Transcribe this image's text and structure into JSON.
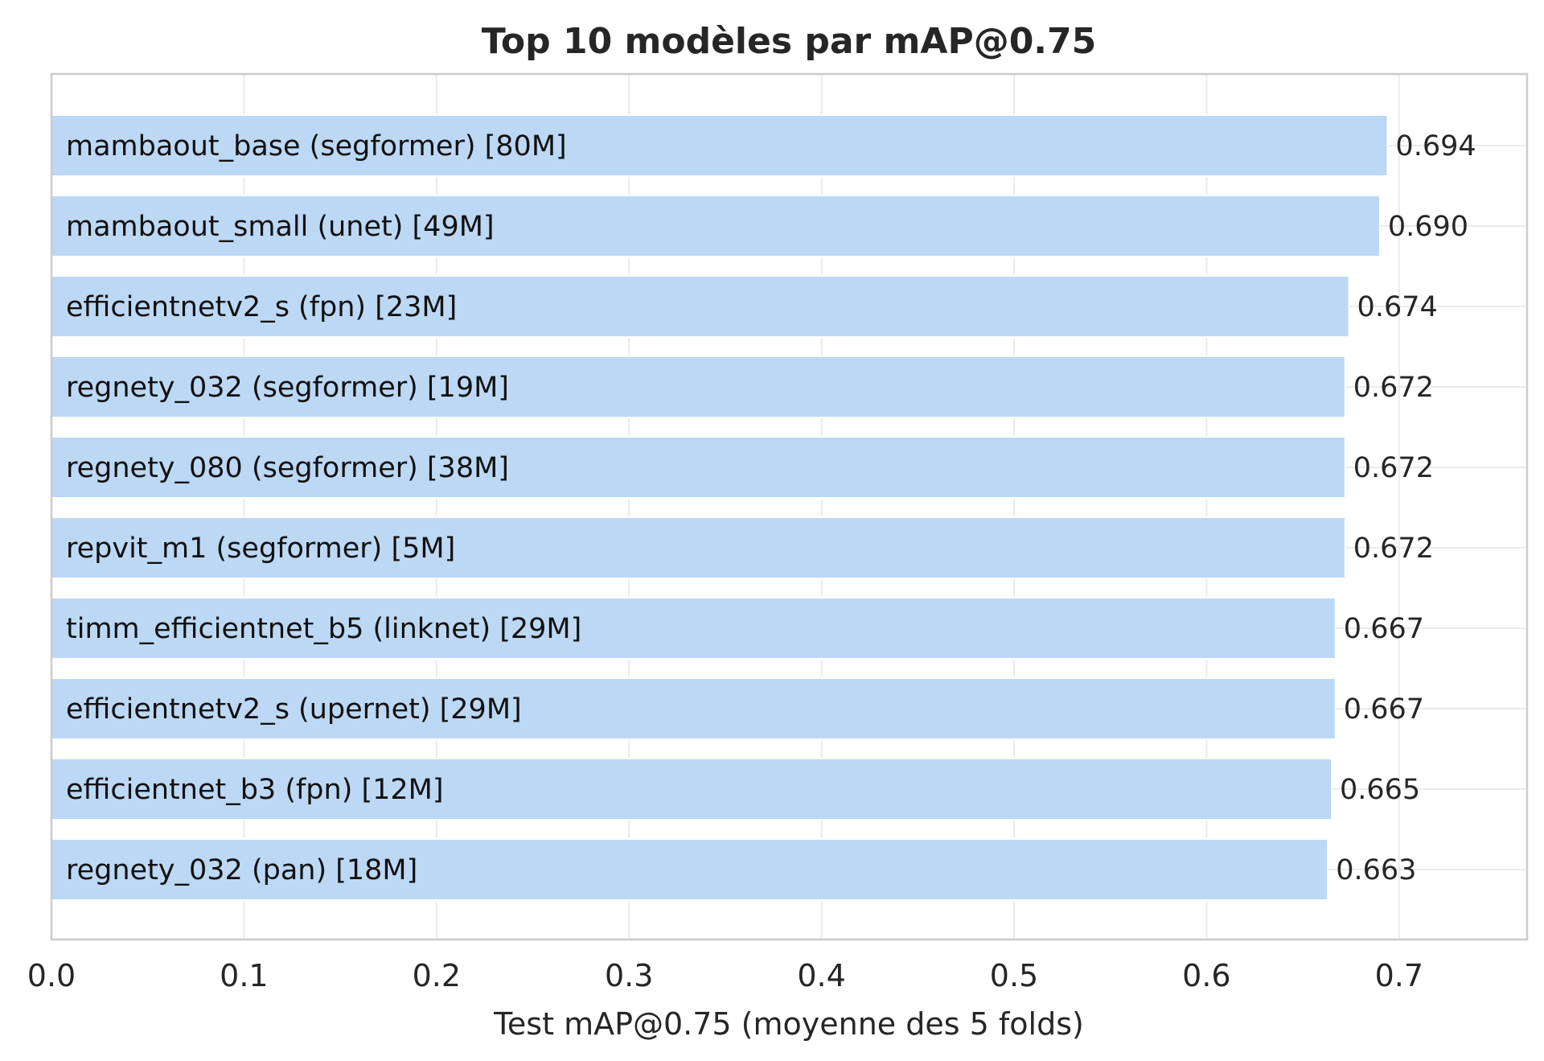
{
  "colors": {
    "bar_fill": "#bcd8f5",
    "bar_edge": "#ffffff",
    "grid": "#ebebeb",
    "frame": "#cccccc",
    "text": "#262626"
  },
  "chart_data": {
    "type": "bar",
    "orientation": "horizontal",
    "title": "Top 10 modèles par mAP@0.75",
    "xlabel": "Test mAP@0.75 (moyenne des 5 folds)",
    "ylabel": "",
    "xlim": [
      0,
      0.7665
    ],
    "x_ticks": [
      "0.0",
      "0.1",
      "0.2",
      "0.3",
      "0.4",
      "0.5",
      "0.6",
      "0.7"
    ],
    "grid": true,
    "categories": [
      "mambaout_base (segformer) [80M]",
      "mambaout_small (unet) [49M]",
      "efficientnetv2_s (fpn) [23M]",
      "regnety_032 (segformer) [19M]",
      "regnety_080 (segformer) [38M]",
      "repvit_m1 (segformer) [5M]",
      "timm_efficientnet_b5 (linknet) [29M]",
      "efficientnetv2_s (upernet) [29M]",
      "efficientnet_b3 (fpn) [12M]",
      "regnety_032 (pan) [18M]"
    ],
    "values": [
      0.694,
      0.69,
      0.674,
      0.672,
      0.672,
      0.672,
      0.667,
      0.667,
      0.665,
      0.663
    ],
    "value_labels": [
      "0.694",
      "0.690",
      "0.674",
      "0.672",
      "0.672",
      "0.672",
      "0.667",
      "0.667",
      "0.665",
      "0.663"
    ]
  }
}
